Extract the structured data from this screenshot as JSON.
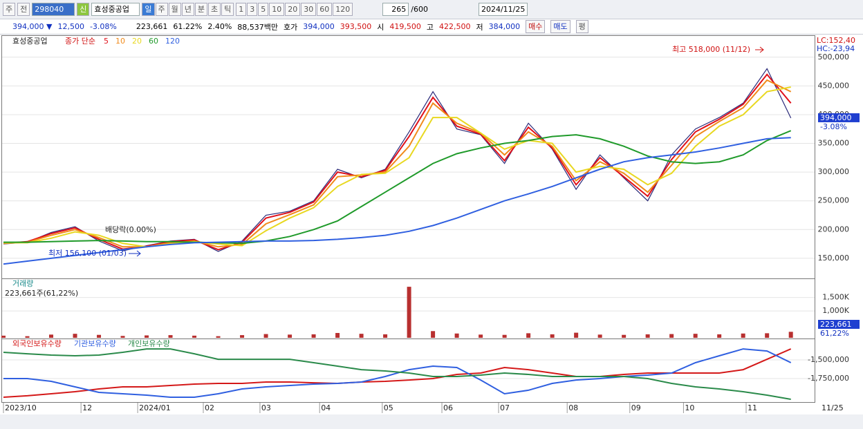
{
  "toolbar": {
    "period": "주",
    "prev": "전",
    "code": "298040",
    "badge": "신",
    "name": "효성중공업",
    "intervals": [
      "일",
      "주",
      "월",
      "년",
      "분",
      "초",
      "틱"
    ],
    "steps": [
      "1",
      "3",
      "5",
      "10",
      "20",
      "30",
      "60",
      "120"
    ],
    "count": "265",
    "total": "/600",
    "date": "2024/11/25"
  },
  "quote": {
    "price": "394,000 ▼",
    "change": "12,500",
    "rate": "-3.08%",
    "volume": "223,661",
    "volume_rate": "61.22%",
    "turnover_rate": "2.40%",
    "amount": "88,537백만",
    "ask_label": "호가",
    "ask": "394,000",
    "bid": "393,500",
    "open_label": "시",
    "open": "419,500",
    "high_label": "고",
    "high": "422,500",
    "low_label": "저",
    "low": "384,000",
    "buttons": [
      "매수",
      "매도",
      "평"
    ]
  },
  "x_axis": {
    "ticks": [
      {
        "value": 0,
        "label": "2023/10"
      },
      {
        "value": 26,
        "label": "12"
      },
      {
        "value": 45,
        "label": "2024/01"
      },
      {
        "value": 67,
        "label": "02"
      },
      {
        "value": 86,
        "label": "03"
      },
      {
        "value": 106,
        "label": "04"
      },
      {
        "value": 127,
        "label": "05"
      },
      {
        "value": 147,
        "label": "06"
      },
      {
        "value": 166,
        "label": "07"
      },
      {
        "value": 189,
        "label": "08"
      },
      {
        "value": 210,
        "label": "09"
      },
      {
        "value": 228,
        "label": "10"
      },
      {
        "value": 249,
        "label": "11"
      }
    ],
    "end_label": "11/25"
  },
  "chart_data": [
    {
      "type": "line",
      "name": "효성중공업",
      "legend_title": "종가 단순",
      "side_labels": [
        "LC:152,40",
        "HC:-23,94"
      ],
      "last_price": "394,000",
      "last_rate": "-3.08%",
      "annotations": [
        "최고 518,000 (11/12)",
        "최저 156,100 (01/03)",
        "배당락(0.00%)"
      ],
      "x": [
        0,
        8,
        16,
        24,
        32,
        40,
        48,
        56,
        64,
        72,
        80,
        88,
        96,
        104,
        112,
        120,
        128,
        136,
        144,
        152,
        160,
        168,
        176,
        184,
        192,
        200,
        208,
        216,
        224,
        232,
        240,
        248,
        256,
        264
      ],
      "xlim": [
        0,
        265
      ],
      "ylim": [
        115000,
        537000
      ],
      "yticks": [
        {
          "value": 150000,
          "label": "150,000"
        },
        {
          "value": 200000,
          "label": "200,000"
        },
        {
          "value": 250000,
          "label": "250,000"
        },
        {
          "value": 300000,
          "label": "300,000"
        },
        {
          "value": 350000,
          "label": "350,000"
        },
        {
          "value": 400000,
          "label": "400,000"
        },
        {
          "value": 450000,
          "label": "450,000"
        },
        {
          "value": 500000,
          "label": "500,000"
        }
      ],
      "grid": true,
      "series": [
        {
          "color": "#2a2a7a",
          "values": [
            175000,
            178000,
            195000,
            205000,
            180000,
            163000,
            172000,
            180000,
            183000,
            162000,
            180000,
            225000,
            232000,
            250000,
            305000,
            290000,
            305000,
            370000,
            440000,
            375000,
            365000,
            315000,
            385000,
            340000,
            270000,
            330000,
            290000,
            250000,
            330000,
            375000,
            395000,
            420000,
            480000,
            394000
          ]
        },
        {
          "name": "5",
          "color": "#e0101a",
          "values": [
            176000,
            179000,
            193000,
            203000,
            183000,
            166000,
            171000,
            179000,
            182000,
            165000,
            178000,
            220000,
            230000,
            248000,
            300000,
            292000,
            303000,
            362000,
            430000,
            380000,
            366000,
            320000,
            378000,
            342000,
            278000,
            325000,
            292000,
            258000,
            322000,
            370000,
            392000,
            418000,
            470000,
            420000
          ]
        },
        {
          "name": "10",
          "color": "#f08a1a",
          "values": [
            176000,
            178000,
            190000,
            200000,
            186000,
            170000,
            170000,
            177000,
            180000,
            170000,
            174000,
            210000,
            226000,
            243000,
            292000,
            295000,
            300000,
            345000,
            420000,
            385000,
            368000,
            330000,
            370000,
            345000,
            285000,
            318000,
            298000,
            265000,
            312000,
            362000,
            388000,
            412000,
            460000,
            440000
          ]
        },
        {
          "name": "20",
          "color": "#e8d820",
          "values": [
            177000,
            177000,
            185000,
            196000,
            190000,
            176000,
            170000,
            175000,
            179000,
            175000,
            172000,
            198000,
            220000,
            238000,
            275000,
            296000,
            298000,
            325000,
            395000,
            395000,
            368000,
            340000,
            355000,
            350000,
            300000,
            310000,
            305000,
            278000,
            298000,
            345000,
            380000,
            400000,
            440000,
            448000
          ]
        },
        {
          "name": "60",
          "color": "#1f9a2a",
          "values": [
            178000,
            178000,
            179000,
            180000,
            181000,
            180000,
            179000,
            179000,
            178000,
            177000,
            176000,
            180000,
            188000,
            200000,
            215000,
            240000,
            265000,
            290000,
            315000,
            332000,
            342000,
            350000,
            355000,
            362000,
            365000,
            358000,
            345000,
            328000,
            318000,
            315000,
            318000,
            330000,
            355000,
            372000
          ]
        },
        {
          "name": "120",
          "color": "#2f5fe0",
          "values": [
            140000,
            145000,
            150000,
            155000,
            160000,
            165000,
            170000,
            174000,
            177000,
            178000,
            179000,
            180000,
            180000,
            181000,
            183000,
            186000,
            190000,
            197000,
            207000,
            220000,
            235000,
            250000,
            262000,
            275000,
            290000,
            305000,
            318000,
            325000,
            330000,
            335000,
            342000,
            350000,
            358000,
            360000
          ]
        }
      ]
    },
    {
      "type": "bar",
      "title": "거래량",
      "subtitle": "223,661주(61,22%)",
      "last_value": "223,661",
      "last_rate": "61,22%",
      "color": "#b83030",
      "x": [
        0,
        8,
        16,
        24,
        32,
        40,
        48,
        56,
        64,
        72,
        80,
        88,
        96,
        104,
        112,
        120,
        128,
        136,
        144,
        152,
        160,
        168,
        176,
        184,
        192,
        200,
        208,
        216,
        224,
        232,
        240,
        248,
        256,
        264
      ],
      "xlim": [
        0,
        265
      ],
      "ylim": [
        0,
        2160000
      ],
      "yticks": [
        {
          "value": 1000000,
          "label": "1,000K"
        },
        {
          "value": 1500000,
          "label": "1,500K"
        }
      ],
      "grid": true,
      "values": [
        80000,
        60000,
        120000,
        150000,
        110000,
        70000,
        90000,
        100000,
        80000,
        60000,
        100000,
        140000,
        120000,
        130000,
        180000,
        150000,
        130000,
        1900000,
        250000,
        160000,
        120000,
        110000,
        170000,
        130000,
        190000,
        120000,
        110000,
        130000,
        140000,
        150000,
        130000,
        160000,
        170000,
        223661
      ]
    },
    {
      "type": "line",
      "x": [
        0,
        8,
        16,
        24,
        32,
        40,
        48,
        56,
        64,
        72,
        80,
        88,
        96,
        104,
        112,
        120,
        128,
        136,
        144,
        152,
        160,
        168,
        176,
        184,
        192,
        200,
        208,
        216,
        224,
        232,
        240,
        248,
        256,
        264
      ],
      "xlim": [
        0,
        265
      ],
      "ylim": [
        -2065000,
        -1231000
      ],
      "yticks": [
        {
          "value": -1750000,
          "label": "-1,750,000"
        },
        {
          "value": -1500000,
          "label": "-1,500,000"
        }
      ],
      "grid": true,
      "series": [
        {
          "name": "외국인보유수량",
          "color": "#d41818",
          "values": [
            -2000000,
            -1981000,
            -1954000,
            -1926000,
            -1889000,
            -1861000,
            -1861000,
            -1843000,
            -1824000,
            -1815000,
            -1815000,
            -1796000,
            -1796000,
            -1806000,
            -1815000,
            -1796000,
            -1787000,
            -1769000,
            -1750000,
            -1694000,
            -1676000,
            -1602000,
            -1630000,
            -1676000,
            -1722000,
            -1722000,
            -1694000,
            -1676000,
            -1676000,
            -1676000,
            -1676000,
            -1630000,
            -1491000,
            -1352000
          ]
        },
        {
          "name": "기관보유수량",
          "color": "#2f5fe0",
          "values": [
            -1750000,
            -1750000,
            -1787000,
            -1861000,
            -1935000,
            -1954000,
            -1972000,
            -2000000,
            -2000000,
            -1954000,
            -1889000,
            -1861000,
            -1843000,
            -1824000,
            -1815000,
            -1796000,
            -1722000,
            -1630000,
            -1583000,
            -1602000,
            -1769000,
            -1954000,
            -1907000,
            -1815000,
            -1769000,
            -1750000,
            -1722000,
            -1704000,
            -1676000,
            -1537000,
            -1444000,
            -1352000,
            -1380000,
            -1537000
          ]
        },
        {
          "name": "개인보유수량",
          "color": "#2a8a4a",
          "values": [
            -1398000,
            -1417000,
            -1435000,
            -1444000,
            -1435000,
            -1398000,
            -1352000,
            -1352000,
            -1417000,
            -1491000,
            -1491000,
            -1491000,
            -1491000,
            -1537000,
            -1583000,
            -1630000,
            -1648000,
            -1676000,
            -1722000,
            -1722000,
            -1704000,
            -1676000,
            -1694000,
            -1722000,
            -1722000,
            -1722000,
            -1722000,
            -1750000,
            -1815000,
            -1861000,
            -1889000,
            -1926000,
            -1972000,
            -2028000
          ]
        }
      ]
    }
  ]
}
